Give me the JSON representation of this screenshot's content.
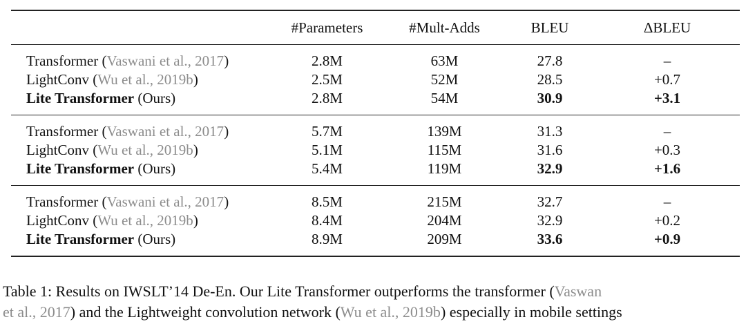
{
  "table": {
    "headers": [
      "",
      "#Parameters",
      "#Mult-Adds",
      "BLEU",
      "ΔBLEU"
    ],
    "groups": [
      {
        "rows": [
          {
            "name": "Transformer",
            "cite_open": " (",
            "cite": "Vaswani et al., 2017",
            "cite_close": ")",
            "bold": false,
            "params": "2.8M",
            "mult_adds": "63M",
            "bleu": "27.8",
            "delta": "–"
          },
          {
            "name": "LightConv",
            "cite_open": " (",
            "cite": "Wu et al., 2019b",
            "cite_close": ")",
            "bold": false,
            "params": "2.5M",
            "mult_adds": "52M",
            "bleu": "28.5",
            "delta": "+0.7"
          },
          {
            "name": "Lite Transformer",
            "suffix": " (Ours)",
            "bold": true,
            "params": "2.8M",
            "mult_adds": "54M",
            "bleu": "30.9",
            "delta": "+3.1"
          }
        ]
      },
      {
        "rows": [
          {
            "name": "Transformer",
            "cite_open": " (",
            "cite": "Vaswani et al., 2017",
            "cite_close": ")",
            "bold": false,
            "params": "5.7M",
            "mult_adds": "139M",
            "bleu": "31.3",
            "delta": "–"
          },
          {
            "name": "LightConv",
            "cite_open": " (",
            "cite": "Wu et al., 2019b",
            "cite_close": ")",
            "bold": false,
            "params": "5.1M",
            "mult_adds": "115M",
            "bleu": "31.6",
            "delta": "+0.3"
          },
          {
            "name": "Lite Transformer",
            "suffix": " (Ours)",
            "bold": true,
            "params": "5.4M",
            "mult_adds": "119M",
            "bleu": "32.9",
            "delta": "+1.6"
          }
        ]
      },
      {
        "rows": [
          {
            "name": "Transformer",
            "cite_open": " (",
            "cite": "Vaswani et al., 2017",
            "cite_close": ")",
            "bold": false,
            "params": "8.5M",
            "mult_adds": "215M",
            "bleu": "32.7",
            "delta": "–"
          },
          {
            "name": "LightConv",
            "cite_open": " (",
            "cite": "Wu et al., 2019b",
            "cite_close": ")",
            "bold": false,
            "params": "8.4M",
            "mult_adds": "204M",
            "bleu": "32.9",
            "delta": "+0.2"
          },
          {
            "name": "Lite Transformer",
            "suffix": " (Ours)",
            "bold": true,
            "params": "8.9M",
            "mult_adds": "209M",
            "bleu": "33.6",
            "delta": "+0.9"
          }
        ]
      }
    ]
  },
  "caption": {
    "line1_text": "Table 1: Results on IWSLT’14 De-En. Our Lite Transformer outperforms the transformer (",
    "line1_cite": "Vaswan",
    "line2_cite_a": "et al., 2017",
    "line2_text_a": ") and the Lightweight convolution network (",
    "line2_cite_b": "Wu et al., 2019b",
    "line2_text_b": ") especially in mobile settings"
  },
  "colors": {
    "citation": "#8c8c8c",
    "text": "#111111",
    "rule": "#222222"
  }
}
